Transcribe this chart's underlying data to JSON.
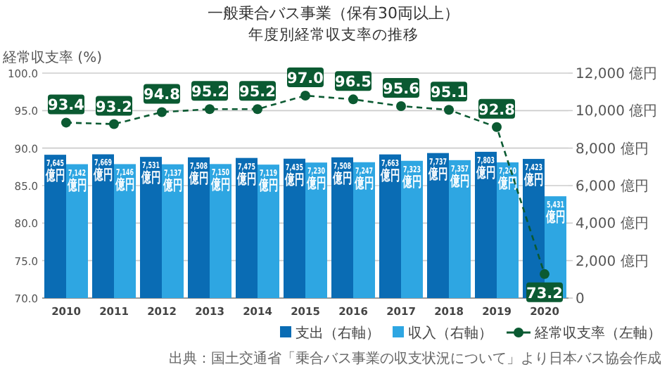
{
  "chart_data": {
    "type": "bar",
    "title": "一般乗合バス事業（保有30両以上）",
    "subtitle": "年度別経常収支率の推移",
    "ylabel": "経常収支率 (%)",
    "categories": [
      "2010",
      "2011",
      "2012",
      "2013",
      "2014",
      "2015",
      "2016",
      "2017",
      "2018",
      "2019",
      "2020"
    ],
    "ylim": [
      70,
      100
    ],
    "yticks": [
      {
        "value": 70,
        "label": "70.0"
      },
      {
        "value": 75,
        "label": "75.0"
      },
      {
        "value": 80,
        "label": "80.0"
      },
      {
        "value": 85,
        "label": "85.0"
      },
      {
        "value": 90,
        "label": "90.0"
      },
      {
        "value": 95,
        "label": "95.0"
      },
      {
        "value": 100,
        "label": "100.0"
      }
    ],
    "y2lim": [
      0,
      12000
    ],
    "y2ticks": [
      0,
      {
        "value": 2000,
        "label": "2,000 億円"
      },
      {
        "value": 4000,
        "label": "4,000 億円"
      },
      {
        "value": 6000,
        "label": "6,000 億円"
      },
      {
        "value": 8000,
        "label": "8,000 億円"
      },
      {
        "value": 10000,
        "label": "10,000 億円"
      },
      {
        "value": 12000,
        "label": "12,000 億円"
      }
    ],
    "grid": "y",
    "legend": "bottom right",
    "series": [
      {
        "name": "支出（右軸）",
        "axis": "y2",
        "color": "#0a6cb4",
        "values": [
          7645,
          7669,
          7531,
          7508,
          7475,
          7435,
          7508,
          7663,
          7737,
          7803,
          7423
        ],
        "value_labels": [
          "7,645\n億円",
          "7,669\n億円",
          "7,531\n億円",
          "7,508\n億円",
          "7,475\n億円",
          "7,435\n億円",
          "7,508\n億円",
          "7,663\n億円",
          "7,737\n億円",
          "7,803\n億円",
          "7,423\n億円"
        ]
      },
      {
        "name": "収入（右軸）",
        "axis": "y2",
        "color": "#2ea6e2",
        "values": [
          7142,
          7146,
          7137,
          7150,
          7119,
          7230,
          7247,
          7323,
          7357,
          7240,
          5431
        ],
        "value_labels": [
          "7,142\n億円",
          "7,146\n億円",
          "7,137\n億円",
          "7,150\n億円",
          "7,119\n億円",
          "7,230\n億円",
          "7,247\n億円",
          "7,323\n億円",
          "7,357\n億円",
          "7,240\n億円",
          "5,431\n億円"
        ]
      },
      {
        "name": "経常収支率（左軸）",
        "type": "line",
        "axis": "y",
        "color": "#0b5a32",
        "marker": "circle",
        "line_style": "dashed",
        "values": [
          93.4,
          93.2,
          94.8,
          95.2,
          95.2,
          97.0,
          96.5,
          95.6,
          95.1,
          92.8,
          73.2
        ],
        "value_labels": [
          "93.4",
          "93.2",
          "94.8",
          "95.2",
          "95.2",
          "97.0",
          "96.5",
          "95.6",
          "95.1",
          "92.8",
          "73.2"
        ]
      }
    ],
    "annotations": [
      "出典：国土交通省「乗合バス事業の収支状況について」より日本バス協会作成"
    ]
  }
}
